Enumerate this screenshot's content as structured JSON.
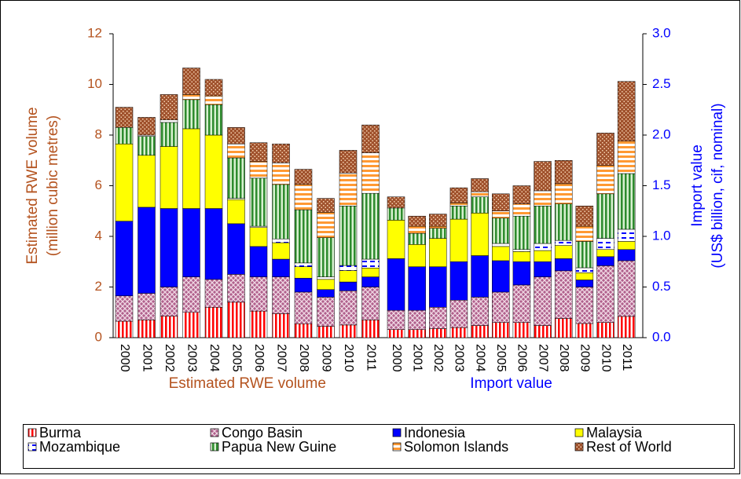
{
  "chart_data": {
    "type": "bar",
    "stacked": true,
    "ylabel": [
      "Estimated RWE volume",
      "(million cubic metres)"
    ],
    "y2label": [
      "Import value",
      "(US$ billion, cif, nominal)"
    ],
    "ylabel_color": "#b4531f",
    "y2label_color": "#0000ff",
    "categories": [
      "2000",
      "2001",
      "2002",
      "2003",
      "2004",
      "2005",
      "2006",
      "2007",
      "2008",
      "2009",
      "2010",
      "2011"
    ],
    "panels": [
      {
        "label": "Estimated RWE volume",
        "axis": "y",
        "values_key": "values"
      },
      {
        "label": "Import value",
        "axis": "y2",
        "values_key": "y2_values"
      }
    ],
    "ylim": [
      0,
      12
    ],
    "yticks": [
      0,
      2,
      4,
      6,
      8,
      10,
      12
    ],
    "y2lim": [
      0,
      3
    ],
    "y2ticks": [
      {
        "value": 0,
        "label": "0.0"
      },
      0.5,
      {
        "value": 1,
        "label": "1.0"
      },
      1.5,
      {
        "value": 2,
        "label": "2.0"
      },
      2.5,
      {
        "value": 3,
        "label": "3.0"
      }
    ],
    "grid": false,
    "legend_position": "bottom",
    "series": [
      {
        "name": "Burma",
        "color": "#ff0000",
        "pattern": "vstripe",
        "values": [
          0.65,
          0.7,
          0.85,
          1.0,
          1.2,
          1.4,
          1.05,
          0.95,
          0.55,
          0.45,
          0.5,
          0.7
        ],
        "y2_values": [
          0.08,
          0.08,
          0.09,
          0.1,
          0.12,
          0.15,
          0.15,
          0.12,
          0.19,
          0.14,
          0.15,
          0.21
        ]
      },
      {
        "name": "Congo Basin",
        "color": "#b0608c",
        "pattern": "cross",
        "values": [
          1.0,
          1.05,
          1.15,
          1.4,
          1.1,
          1.1,
          1.35,
          1.45,
          1.25,
          1.15,
          1.35,
          1.3
        ],
        "y2_values": [
          0.19,
          0.19,
          0.21,
          0.27,
          0.28,
          0.3,
          0.37,
          0.48,
          0.47,
          0.36,
          0.56,
          0.55
        ]
      },
      {
        "name": "Indonesia",
        "color": "#0000ff",
        "pattern": "solid",
        "values": [
          2.95,
          3.4,
          3.1,
          2.7,
          2.8,
          2.0,
          1.2,
          0.7,
          0.55,
          0.3,
          0.35,
          0.4
        ],
        "y2_values": [
          0.51,
          0.43,
          0.4,
          0.38,
          0.41,
          0.31,
          0.23,
          0.15,
          0.12,
          0.07,
          0.09,
          0.11
        ]
      },
      {
        "name": "Malaysia",
        "color": "#ffff00",
        "pattern": "solid",
        "values": [
          3.05,
          2.05,
          2.45,
          3.15,
          2.9,
          0.95,
          0.75,
          0.65,
          0.45,
          0.4,
          0.45,
          0.35
        ],
        "y2_values": [
          0.38,
          0.22,
          0.28,
          0.42,
          0.42,
          0.14,
          0.1,
          0.11,
          0.13,
          0.07,
          0.07,
          0.08
        ]
      },
      {
        "name": "Mozambique",
        "color": "#0000ff",
        "pattern": "dash",
        "values": [
          0,
          0,
          0,
          0,
          0,
          0.05,
          0.05,
          0.15,
          0.15,
          0.1,
          0.2,
          0.35
        ],
        "y2_values": [
          0,
          0,
          0,
          0,
          0,
          0.03,
          0.02,
          0.07,
          0.05,
          0.05,
          0.11,
          0.12
        ]
      },
      {
        "name": "Papua New Guine",
        "color": "#2e8b2e",
        "pattern": "vstripe",
        "values": [
          0.65,
          0.75,
          0.95,
          1.15,
          1.2,
          1.6,
          1.9,
          2.15,
          2.1,
          1.55,
          2.35,
          2.6
        ],
        "y2_values": [
          0.12,
          0.11,
          0.1,
          0.13,
          0.16,
          0.25,
          0.33,
          0.37,
          0.36,
          0.26,
          0.44,
          0.55
        ]
      },
      {
        "name": "Solomon Islands",
        "color": "#ff9933",
        "pattern": "hstripe",
        "values": [
          0,
          0.05,
          0.1,
          0.2,
          0.35,
          0.55,
          0.65,
          0.85,
          1.0,
          1.0,
          1.3,
          1.6
        ],
        "y2_values": [
          0,
          0.07,
          0.02,
          0.03,
          0.05,
          0.07,
          0.12,
          0.15,
          0.2,
          0.15,
          0.28,
          0.32
        ]
      },
      {
        "name": "Rest of World",
        "color": "#a0522d",
        "pattern": "dots",
        "values": [
          0.8,
          0.7,
          1.0,
          1.05,
          0.65,
          0.65,
          0.75,
          0.75,
          0.6,
          0.55,
          0.9,
          1.1
        ],
        "y2_values": [
          0.11,
          0.1,
          0.12,
          0.15,
          0.13,
          0.17,
          0.18,
          0.29,
          0.23,
          0.2,
          0.32,
          0.59
        ]
      }
    ]
  }
}
